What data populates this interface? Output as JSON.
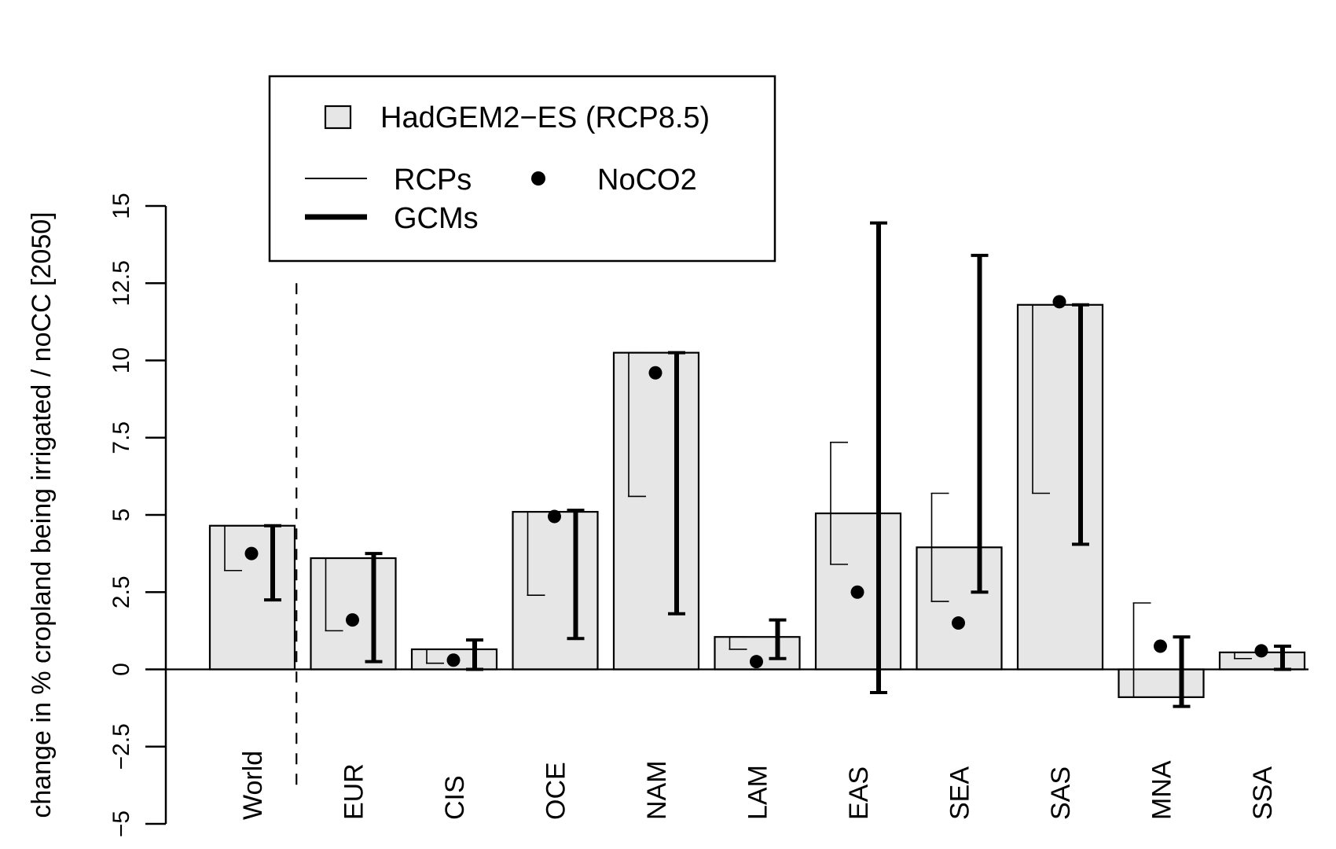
{
  "chart_data": {
    "type": "bar",
    "ylabel": "change in % cropland being irrigated / noCC [2050]",
    "ylim": [
      -5,
      15
    ],
    "yticks": [
      -5,
      -2.5,
      0,
      2.5,
      5,
      7.5,
      10,
      12.5,
      15
    ],
    "ytick_labels": [
      "−5",
      "−2.5",
      "0",
      "2.5",
      "5",
      "7.5",
      "10",
      "12.5",
      "15"
    ],
    "categories": [
      "World",
      "EUR",
      "CIS",
      "OCE",
      "NAM",
      "LAM",
      "EAS",
      "SEA",
      "SAS",
      "MNA",
      "SSA"
    ],
    "separator_after": "World",
    "series": [
      {
        "name": "HadGEM2−ES (RCP8.5)",
        "values": [
          4.65,
          3.6,
          0.65,
          5.1,
          10.25,
          1.05,
          5.05,
          3.95,
          11.8,
          -0.9,
          0.55
        ]
      }
    ],
    "rcp_ranges": [
      [
        3.2,
        4.65
      ],
      [
        1.25,
        3.6
      ],
      [
        0.2,
        0.65
      ],
      [
        2.4,
        5.1
      ],
      [
        5.6,
        10.25
      ],
      [
        0.65,
        1.05
      ],
      [
        3.4,
        7.35
      ],
      [
        2.2,
        5.7
      ],
      [
        5.7,
        11.8
      ],
      [
        -0.9,
        2.15
      ],
      [
        0.35,
        0.55
      ]
    ],
    "gcm_ranges": [
      [
        2.25,
        4.65
      ],
      [
        0.25,
        3.75
      ],
      [
        0.0,
        0.95
      ],
      [
        1.0,
        5.15
      ],
      [
        1.8,
        10.25
      ],
      [
        0.35,
        1.6
      ],
      [
        -0.75,
        14.45
      ],
      [
        2.5,
        13.4
      ],
      [
        4.05,
        11.8
      ],
      [
        -1.2,
        1.05
      ],
      [
        0.0,
        0.75
      ]
    ],
    "noco2": [
      3.75,
      1.6,
      0.3,
      4.95,
      9.6,
      0.25,
      2.5,
      1.5,
      11.9,
      0.75,
      0.6
    ],
    "legend": {
      "position": "top-left",
      "bar_label": "HadGEM2−ES (RCP8.5)",
      "rcp_label": "RCPs",
      "gcm_label": "GCMs",
      "noco2_label": "NoCO2"
    }
  }
}
